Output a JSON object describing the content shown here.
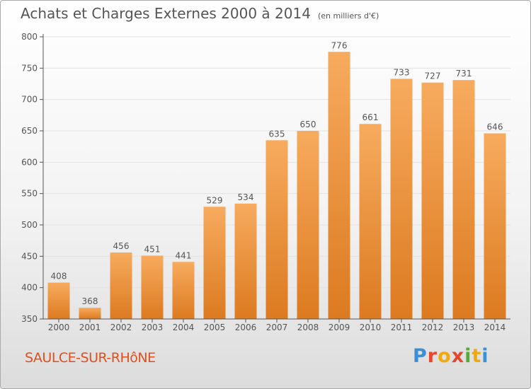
{
  "header": {
    "title": "Achats et Charges Externes 2000 à 2014",
    "unit": "(en milliers d'€)"
  },
  "footer": {
    "commune": "SAULCE-SUR-RHôNE",
    "logo": "Proxiti"
  },
  "colors": {
    "bar_light": "#f6a85a",
    "bar_dark": "#de7c22",
    "grid": "#e3e3e3",
    "axis": "#555555",
    "commune": "#e04f1c"
  },
  "chart_data": {
    "type": "bar",
    "title": "Achats et Charges Externes 2000 à 2014",
    "subtitle": "(en milliers d'€)",
    "xlabel": "",
    "ylabel": "",
    "categories": [
      "2000",
      "2001",
      "2002",
      "2003",
      "2004",
      "2005",
      "2006",
      "2007",
      "2008",
      "2009",
      "2010",
      "2011",
      "2012",
      "2013",
      "2014"
    ],
    "values": [
      408,
      368,
      456,
      451,
      441,
      529,
      534,
      635,
      650,
      776,
      661,
      733,
      727,
      731,
      646
    ],
    "ylim": [
      350,
      800
    ],
    "yticks": [
      350,
      400,
      450,
      500,
      550,
      600,
      650,
      700,
      750,
      800
    ],
    "grid": true,
    "data_labels": true,
    "legend": "none"
  }
}
